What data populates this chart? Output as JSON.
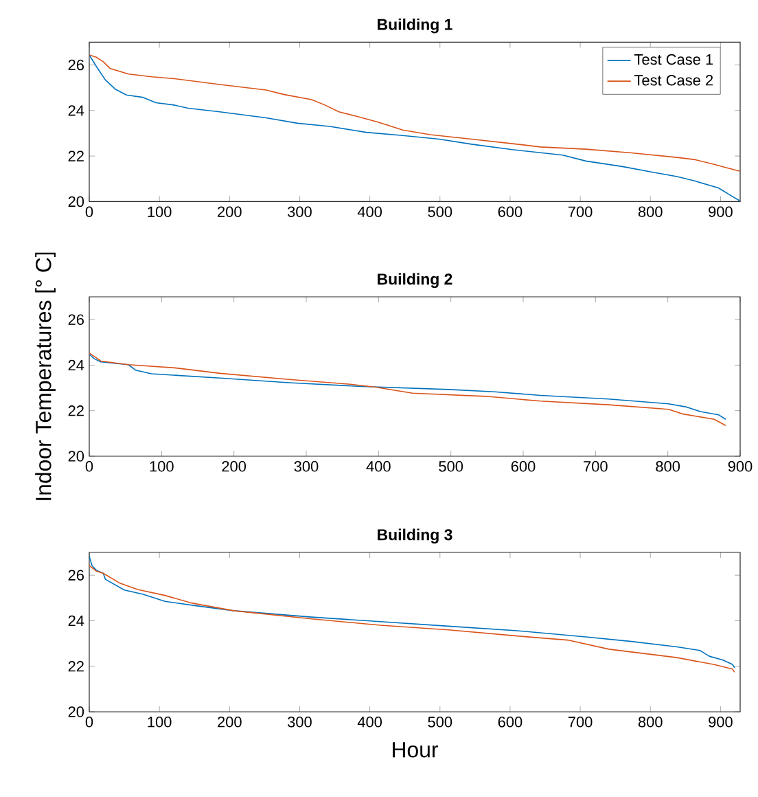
{
  "chart_data": [
    {
      "type": "line",
      "title": "Building 1",
      "xlim": [
        0,
        928
      ],
      "ylim": [
        20,
        27
      ],
      "xticks": [
        0,
        100,
        200,
        300,
        400,
        500,
        600,
        700,
        800,
        900
      ],
      "yticks": [
        20,
        22,
        24,
        26
      ],
      "legend": "top right",
      "series": [
        {
          "name": "Test Case 1",
          "color": "#0072bd",
          "x": [
            0,
            10,
            23,
            37,
            53,
            76,
            95,
            121,
            141,
            186,
            252,
            297,
            343,
            395,
            447,
            499,
            545,
            603,
            675,
            708,
            760,
            805,
            838,
            864,
            897,
            916,
            927
          ],
          "values": [
            26.44,
            25.94,
            25.34,
            24.94,
            24.68,
            24.58,
            24.34,
            24.24,
            24.1,
            23.94,
            23.68,
            23.44,
            23.3,
            23.04,
            22.9,
            22.74,
            22.52,
            22.28,
            22.04,
            21.78,
            21.54,
            21.28,
            21.1,
            20.9,
            20.6,
            20.24,
            20.04
          ]
        },
        {
          "name": "Test Case 2",
          "color": "#d95319",
          "x": [
            0,
            10,
            20,
            30,
            56,
            89,
            121,
            186,
            252,
            278,
            317,
            336,
            356,
            382,
            411,
            421,
            447,
            486,
            545,
            610,
            643,
            708,
            773,
            838,
            864,
            890,
            909,
            927
          ],
          "values": [
            26.44,
            26.34,
            26.14,
            25.84,
            25.6,
            25.48,
            25.4,
            25.14,
            24.9,
            24.7,
            24.48,
            24.24,
            23.94,
            23.74,
            23.5,
            23.4,
            23.14,
            22.94,
            22.74,
            22.52,
            22.4,
            22.3,
            22.14,
            21.94,
            21.84,
            21.64,
            21.48,
            21.34
          ]
        }
      ]
    },
    {
      "type": "line",
      "title": "Building 2",
      "ylabel": "Indoor Temperatures [° C]",
      "xlim": [
        0,
        900
      ],
      "ylim": [
        20,
        27
      ],
      "xticks": [
        0,
        100,
        200,
        300,
        400,
        500,
        600,
        700,
        800,
        900
      ],
      "yticks": [
        20,
        22,
        24,
        26
      ],
      "series": [
        {
          "color": "#0072bd",
          "x": [
            0,
            7,
            16,
            54,
            64,
            86,
            181,
            276,
            371,
            497,
            560,
            624,
            718,
            801,
            826,
            845,
            870,
            880
          ],
          "values": [
            24.48,
            24.28,
            24.14,
            24.02,
            23.78,
            23.62,
            23.43,
            23.23,
            23.07,
            22.93,
            22.83,
            22.67,
            22.51,
            22.3,
            22.16,
            21.96,
            21.82,
            21.62
          ]
        },
        {
          "color": "#d95319",
          "x": [
            0,
            10,
            16,
            54,
            118,
            181,
            276,
            358,
            396,
            447,
            548,
            624,
            718,
            801,
            820,
            864,
            880
          ],
          "values": [
            24.53,
            24.32,
            24.18,
            24.02,
            23.88,
            23.64,
            23.37,
            23.17,
            23.03,
            22.77,
            22.63,
            22.42,
            22.26,
            22.06,
            21.86,
            21.62,
            21.35
          ]
        }
      ]
    },
    {
      "type": "line",
      "title": "Building 3",
      "xlabel": "Hour",
      "xlim": [
        0,
        928
      ],
      "ylim": [
        20,
        27
      ],
      "xticks": [
        0,
        100,
        200,
        300,
        400,
        500,
        600,
        700,
        800,
        900
      ],
      "yticks": [
        20,
        22,
        24,
        26
      ],
      "series": [
        {
          "color": "#0072bd",
          "x": [
            0,
            4,
            10,
            20,
            23,
            50,
            76,
            108,
            154,
            206,
            317,
            415,
            512,
            610,
            708,
            773,
            838,
            871,
            884,
            903,
            917,
            920
          ],
          "values": [
            26.83,
            26.42,
            26.22,
            26.08,
            25.82,
            25.35,
            25.17,
            24.85,
            24.65,
            24.44,
            24.16,
            23.96,
            23.76,
            23.56,
            23.29,
            23.09,
            22.85,
            22.69,
            22.44,
            22.28,
            22.08,
            21.94
          ]
        },
        {
          "color": "#d95319",
          "x": [
            0,
            10,
            20,
            43,
            69,
            108,
            147,
            206,
            317,
            415,
            512,
            610,
            682,
            741,
            838,
            890,
            917,
            920
          ],
          "values": [
            26.42,
            26.18,
            26.08,
            25.66,
            25.37,
            25.11,
            24.77,
            24.44,
            24.08,
            23.8,
            23.6,
            23.33,
            23.15,
            22.75,
            22.38,
            22.08,
            21.88,
            21.74
          ]
        }
      ]
    }
  ]
}
